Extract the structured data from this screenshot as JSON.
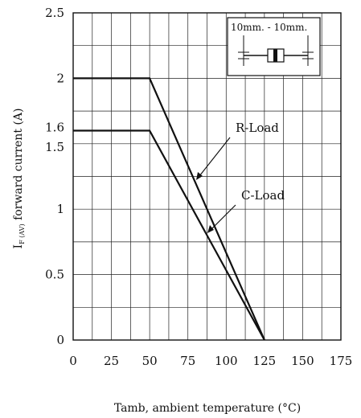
{
  "chart_data": {
    "type": "line",
    "xlabel": "Tamb, ambient temperature (°C)",
    "ylabel": "IF (AV) forward current (A)",
    "ylabel_main": "I",
    "ylabel_sub": "F (AV)",
    "ylabel_rest": " forward current (A)",
    "xlim": [
      0,
      175
    ],
    "ylim": [
      0,
      2.5
    ],
    "x_ticks": [
      0,
      25,
      50,
      75,
      100,
      125,
      150,
      175
    ],
    "y_ticks": [
      0,
      0.5,
      1,
      1.5,
      1.6,
      2,
      2.5
    ],
    "x_tick_labels": [
      "0",
      "25",
      "50",
      "75",
      "100",
      "125",
      "150",
      "175"
    ],
    "y_tick_labels": [
      "0",
      "0.5",
      "1",
      "1.5",
      "1.6",
      "2",
      "2.5"
    ],
    "grid": true,
    "series": [
      {
        "name": "R-Load",
        "x": [
          0,
          50,
          125
        ],
        "y": [
          2,
          2,
          0
        ]
      },
      {
        "name": "C-Load",
        "x": [
          0,
          50,
          125
        ],
        "y": [
          1.6,
          1.6,
          0
        ]
      }
    ],
    "annotations": [
      {
        "text": "R-Load",
        "series": "R-Load"
      },
      {
        "text": "C-Load",
        "series": "C-Load"
      }
    ],
    "inset": {
      "label": "10mm. - 10mm."
    }
  },
  "colors": {
    "line": "#111111",
    "grid": "#222222",
    "background": "#ffffff"
  }
}
